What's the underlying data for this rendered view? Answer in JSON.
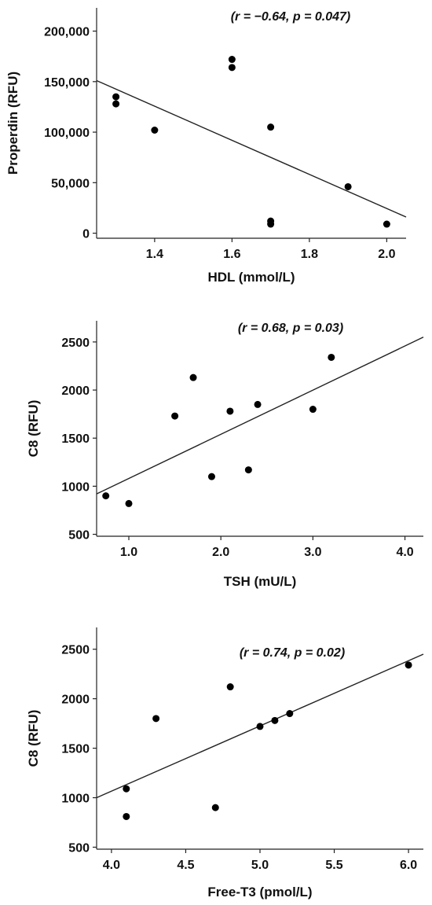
{
  "chart_data": [
    {
      "type": "scatter",
      "title": "",
      "annotation": "(r = −0.64, p = 0.047)",
      "xlabel": "HDL (mmol/L)",
      "ylabel": "Properdin (RFU)",
      "xlim": [
        1.25,
        2.05
      ],
      "ylim": [
        -5000,
        223000
      ],
      "xticks": [
        1.4,
        1.6,
        1.8,
        2.0
      ],
      "xtick_labels": [
        "1.4",
        "1.6",
        "1.8",
        "2.0"
      ],
      "yticks": [
        0,
        50000,
        100000,
        150000,
        200000
      ],
      "ytick_labels": [
        "0",
        "50,000",
        "100,000",
        "150,000",
        "200,000"
      ],
      "x": [
        1.3,
        1.3,
        1.4,
        1.6,
        1.6,
        1.7,
        1.7,
        1.7,
        1.9,
        2.0
      ],
      "y": [
        135000,
        128000,
        102000,
        172000,
        164000,
        105000,
        12000,
        9000,
        46000,
        9000
      ],
      "fit_line": [
        [
          1.25,
          151000
        ],
        [
          2.05,
          16000
        ]
      ],
      "grid": false,
      "legend": "none"
    },
    {
      "type": "scatter",
      "title": "",
      "annotation": "(r = 0.68, p = 0.03)",
      "xlabel": "TSH (mU/L)",
      "ylabel": "C8 (RFU)",
      "xlim": [
        0.65,
        4.2
      ],
      "ylim": [
        480,
        2720
      ],
      "xticks": [
        1.0,
        2.0,
        3.0,
        4.0
      ],
      "xtick_labels": [
        "1.0",
        "2.0",
        "3.0",
        "4.0"
      ],
      "yticks": [
        500,
        1000,
        1500,
        2000,
        2500
      ],
      "ytick_labels": [
        "500",
        "1000",
        "1500",
        "2000",
        "2500"
      ],
      "x": [
        0.75,
        1.0,
        1.5,
        1.7,
        1.9,
        2.1,
        2.3,
        2.4,
        3.0,
        3.2
      ],
      "y": [
        900,
        820,
        1730,
        2130,
        1100,
        1780,
        1170,
        1850,
        1800,
        2340
      ],
      "fit_line": [
        [
          0.65,
          920
        ],
        [
          4.2,
          2550
        ]
      ],
      "grid": false,
      "legend": "none"
    },
    {
      "type": "scatter",
      "title": "",
      "annotation": "(r = 0.74, p = 0.02)",
      "xlabel": "Free-T3 (pmol/L)",
      "ylabel": "C8 (RFU)",
      "xlim": [
        3.9,
        6.1
      ],
      "ylim": [
        480,
        2720
      ],
      "xticks": [
        4.0,
        4.5,
        5.0,
        5.5,
        6.0
      ],
      "xtick_labels": [
        "4.0",
        "4.5",
        "5.0",
        "5.5",
        "6.0"
      ],
      "yticks": [
        500,
        1000,
        1500,
        2000,
        2500
      ],
      "ytick_labels": [
        "500",
        "1000",
        "1500",
        "2000",
        "2500"
      ],
      "x": [
        4.1,
        4.1,
        4.3,
        4.7,
        4.8,
        5.0,
        5.1,
        5.2,
        6.0
      ],
      "y": [
        1090,
        810,
        1800,
        900,
        2120,
        1720,
        1780,
        1850,
        2340
      ],
      "fit_line": [
        [
          3.9,
          1000
        ],
        [
          6.1,
          2450
        ]
      ],
      "grid": false,
      "legend": "none"
    }
  ]
}
